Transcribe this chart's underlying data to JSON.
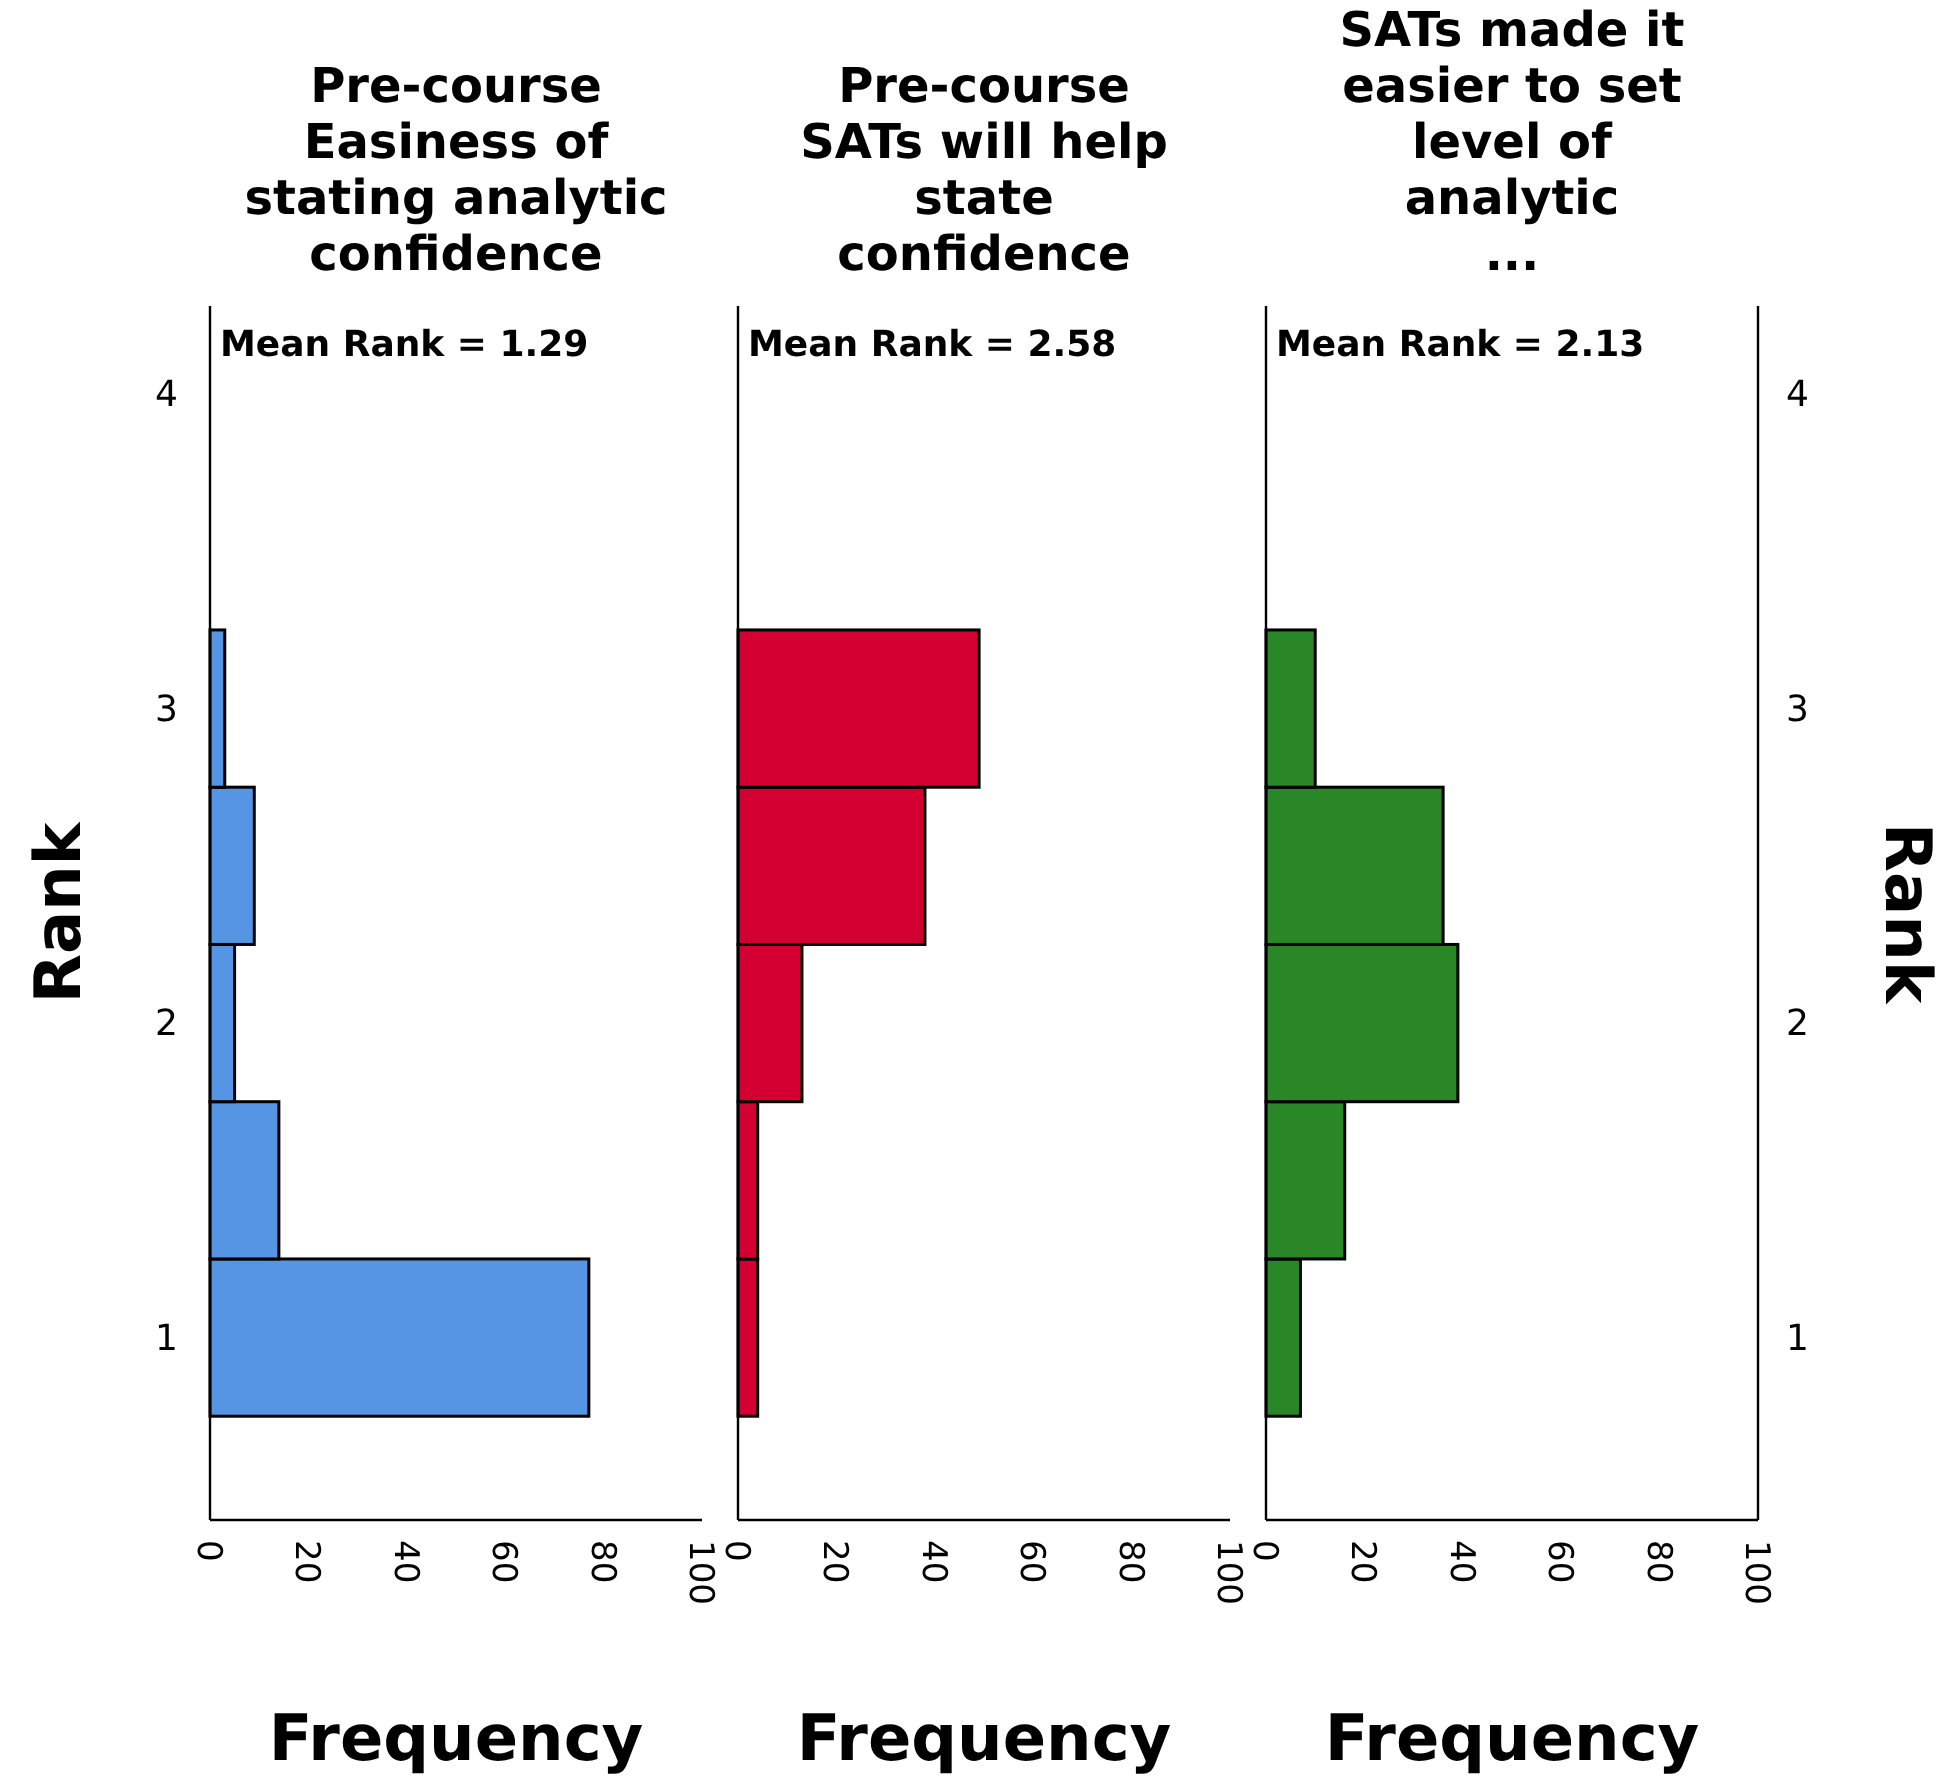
{
  "chart_data": [
    {
      "type": "histogram",
      "orientation": "horizontal",
      "title": "Pre-course\nEasiness of\nstating analytic\nconfidence",
      "xlabel": "Frequency",
      "ylabel": "Rank",
      "annotations": [
        "Mean Rank = 1.29"
      ],
      "bins": [
        0.75,
        1.25,
        1.75,
        2.25,
        2.75,
        3.25
      ],
      "values": [
        77,
        14,
        5,
        9,
        3
      ],
      "color": "#5595e3",
      "xlim": [
        0,
        100
      ],
      "xticks": [
        0,
        20,
        40,
        60,
        80,
        100
      ],
      "ylim": [
        0.42,
        4.28
      ],
      "yticks": [
        1,
        2,
        3,
        4
      ]
    },
    {
      "type": "histogram",
      "orientation": "horizontal",
      "title": "Pre-course\nSATs will help\nstate\nconfidence",
      "xlabel": "Frequency",
      "annotations": [
        "Mean Rank = 2.58"
      ],
      "bins": [
        0.75,
        1.25,
        1.75,
        2.25,
        2.75,
        3.25
      ],
      "values": [
        4,
        4,
        13,
        38,
        49
      ],
      "color": "#d50032",
      "xlim": [
        0,
        100
      ],
      "xticks": [
        0,
        20,
        40,
        60,
        80,
        100
      ],
      "ylim": [
        0.42,
        4.28
      ],
      "tick_labels": "x"
    },
    {
      "type": "histogram",
      "orientation": "horizontal",
      "title": "SATs made it\neasier to set\nlevel of\nanalytic\n...",
      "xlabel": "Frequency",
      "ylabel": "Rank",
      "annotations": [
        "Mean Rank = 2.13"
      ],
      "bins": [
        0.75,
        1.25,
        1.75,
        2.25,
        2.75,
        3.25
      ],
      "values": [
        7,
        16,
        39,
        36,
        10
      ],
      "color": "#2a8728",
      "xlim": [
        0,
        100
      ],
      "xticks": [
        0,
        20,
        40,
        60,
        80,
        100
      ],
      "ylim": [
        0.42,
        4.28
      ],
      "yticks": [
        1,
        2,
        3,
        4
      ]
    }
  ]
}
